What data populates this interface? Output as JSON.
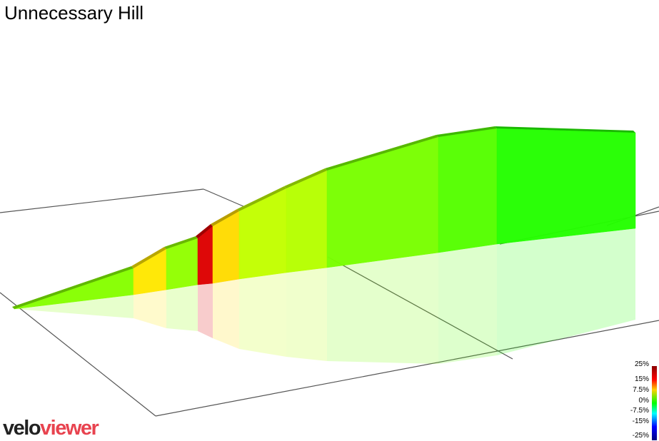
{
  "chart_data": {
    "type": "area",
    "title": "Unnecessary Hill",
    "segments": [
      {
        "grade": 5.5
      },
      {
        "grade": 11.5
      },
      {
        "grade": 6
      },
      {
        "grade": 21
      },
      {
        "grade": 12
      },
      {
        "grade": 8
      },
      {
        "grade": 7.5
      },
      {
        "grade": 5
      },
      {
        "grade": 3.5
      },
      {
        "grade": 1.5
      }
    ],
    "colorscale": {
      "ticks": [
        "25%",
        "15%",
        "7.5%",
        "0%",
        "-7.5%",
        "-15%",
        "-25%"
      ]
    }
  },
  "branding": {
    "logo_part1": "velo",
    "logo_part2": "viewer"
  }
}
